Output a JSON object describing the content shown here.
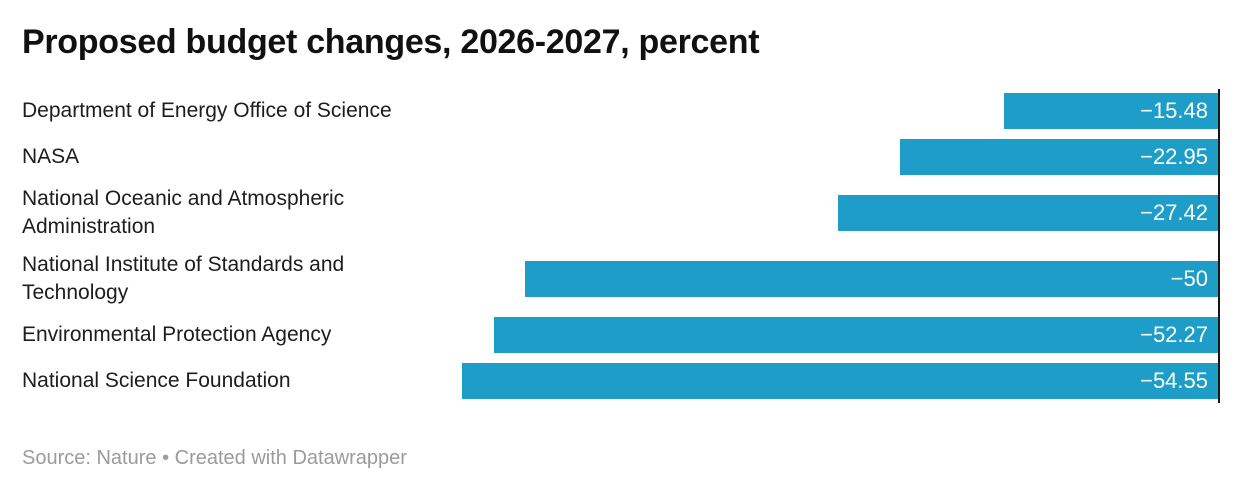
{
  "title": "Proposed budget changes, 2026-2027, percent",
  "footer": {
    "text": "Source: Nature • Created with Datawrapper"
  },
  "colors": {
    "bar": "#1d9dc7",
    "zero_axis_line": "#161616",
    "value_label": "#ffffff",
    "category_label": "#1d1d1d",
    "title": "#111111",
    "footer_text": "#9b9b9b",
    "background": "#ffffff"
  },
  "chart_data": {
    "type": "bar",
    "orientation": "horizontal",
    "title": "Proposed budget changes, 2026-2027, percent",
    "categories": [
      "Department of Energy Office of Science",
      "NASA",
      "National Oceanic and Atmospheric Administration",
      "National Institute of Standards and Technology",
      "Environmental Protection Agency",
      "National Science Foundation"
    ],
    "values": [
      -15.48,
      -22.95,
      -27.42,
      -50,
      -52.27,
      -54.55
    ],
    "value_labels": [
      "−15.48",
      "−22.95",
      "−27.42",
      "−50",
      "−52.27",
      "−54.55"
    ],
    "unit": "percent",
    "xlim": [
      -54.55,
      0
    ],
    "bars_aligned": "right-at-zero",
    "grid": false,
    "legend": false,
    "zero_axis_line": true,
    "source_note": "Source: Nature • Created with Datawrapper"
  }
}
